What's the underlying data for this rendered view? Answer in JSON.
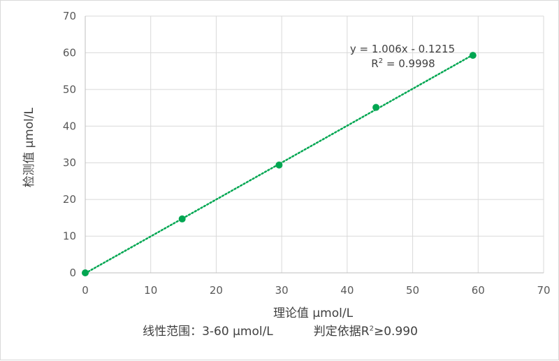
{
  "chart_data": {
    "type": "scatter",
    "title": "",
    "xlabel": "理论值 μmol/L",
    "ylabel": "检测值 μmol/L",
    "xlim": [
      0,
      70
    ],
    "ylim": [
      0,
      70
    ],
    "xticks": [
      "0",
      "10",
      "20",
      "30",
      "40",
      "50",
      "60",
      "70"
    ],
    "yticks": [
      "0",
      "10",
      "20",
      "30",
      "40",
      "50",
      "60",
      "70"
    ],
    "grid": true,
    "legend": "none",
    "series": [
      {
        "x": [
          0,
          14.8,
          29.6,
          44.4,
          59.2
        ],
        "y": [
          0,
          14.7,
          29.4,
          45.1,
          59.3
        ],
        "color": "#00a651"
      }
    ],
    "trendline": {
      "type": "linear",
      "slope": 1.006,
      "intercept": -0.1215,
      "style": "dotted",
      "color": "#00a651",
      "equation": "y = 1.006x - 0.1215",
      "r2_label": "R",
      "r2_sup": "2",
      "r2_value": " = 0.9998"
    }
  },
  "caption": {
    "range_label": "线性范围：3-60 μmol/L",
    "criterion_prefix": "判定依据R",
    "criterion_sup": "2",
    "criterion_value": "≥0.990"
  }
}
